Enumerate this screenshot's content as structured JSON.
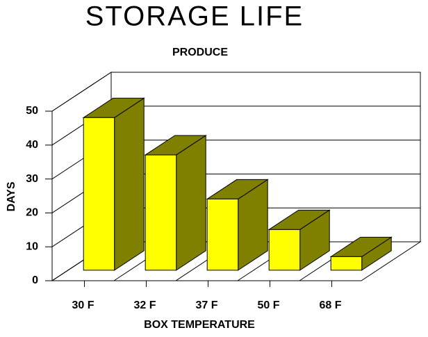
{
  "chart_data": {
    "type": "bar3d",
    "title": "STORAGE LIFE",
    "subtitle": "PRODUCE",
    "x_label": "BOX TEMPERATURE",
    "y_label": "DAYS",
    "categories": [
      "30 F",
      "32 F",
      "37 F",
      "50 F",
      "68 F"
    ],
    "values": [
      45,
      34,
      21,
      12,
      4
    ],
    "color": "#ffff00",
    "side_color": "#808000",
    "ylim": [
      0,
      50
    ],
    "yticks": [
      0,
      10,
      20,
      30,
      40,
      50
    ],
    "grid": true
  }
}
